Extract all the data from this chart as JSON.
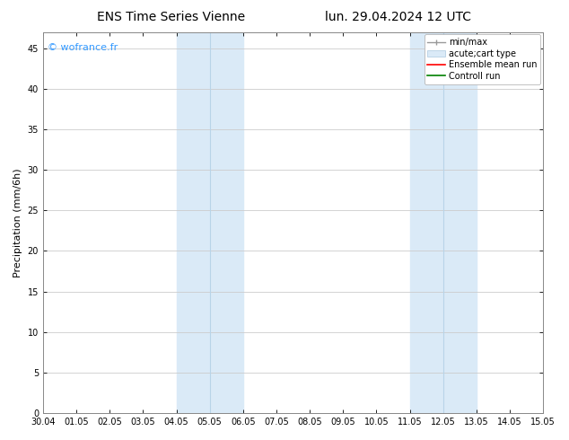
{
  "title_left": "ENS Time Series Vienne",
  "title_right": "lun. 29.04.2024 12 UTC",
  "ylabel": "Precipitation (mm/6h)",
  "watermark": "© wofrance.fr",
  "ylim": [
    0,
    47
  ],
  "yticks": [
    0,
    5,
    10,
    15,
    20,
    25,
    30,
    35,
    40,
    45
  ],
  "xtick_labels": [
    "30.04",
    "01.05",
    "02.05",
    "03.05",
    "04.05",
    "05.05",
    "06.05",
    "07.05",
    "08.05",
    "09.05",
    "10.05",
    "11.05",
    "12.05",
    "13.05",
    "14.05",
    "15.05"
  ],
  "shaded_regions": [
    {
      "xstart": 4,
      "xend": 5,
      "color": "#daeaf7"
    },
    {
      "xstart": 5,
      "xend": 6,
      "color": "#daeaf7"
    },
    {
      "xstart": 11,
      "xend": 12,
      "color": "#daeaf7"
    },
    {
      "xstart": 12,
      "xend": 13,
      "color": "#daeaf7"
    }
  ],
  "legend_items": [
    {
      "label": "min/max",
      "color": "#999999",
      "style": "line_with_caps"
    },
    {
      "label": "acute;cart type",
      "color": "#daeaf7",
      "style": "bar"
    },
    {
      "label": "Ensemble mean run",
      "color": "#ff0000",
      "style": "line"
    },
    {
      "label": "Controll run",
      "color": "#008000",
      "style": "line"
    }
  ],
  "bg_color": "#ffffff",
  "plot_bg_color": "#ffffff",
  "grid_color": "#cccccc",
  "title_fontsize": 10,
  "watermark_color": "#3399ff",
  "axis_label_fontsize": 8,
  "tick_fontsize": 7,
  "legend_fontsize": 7
}
